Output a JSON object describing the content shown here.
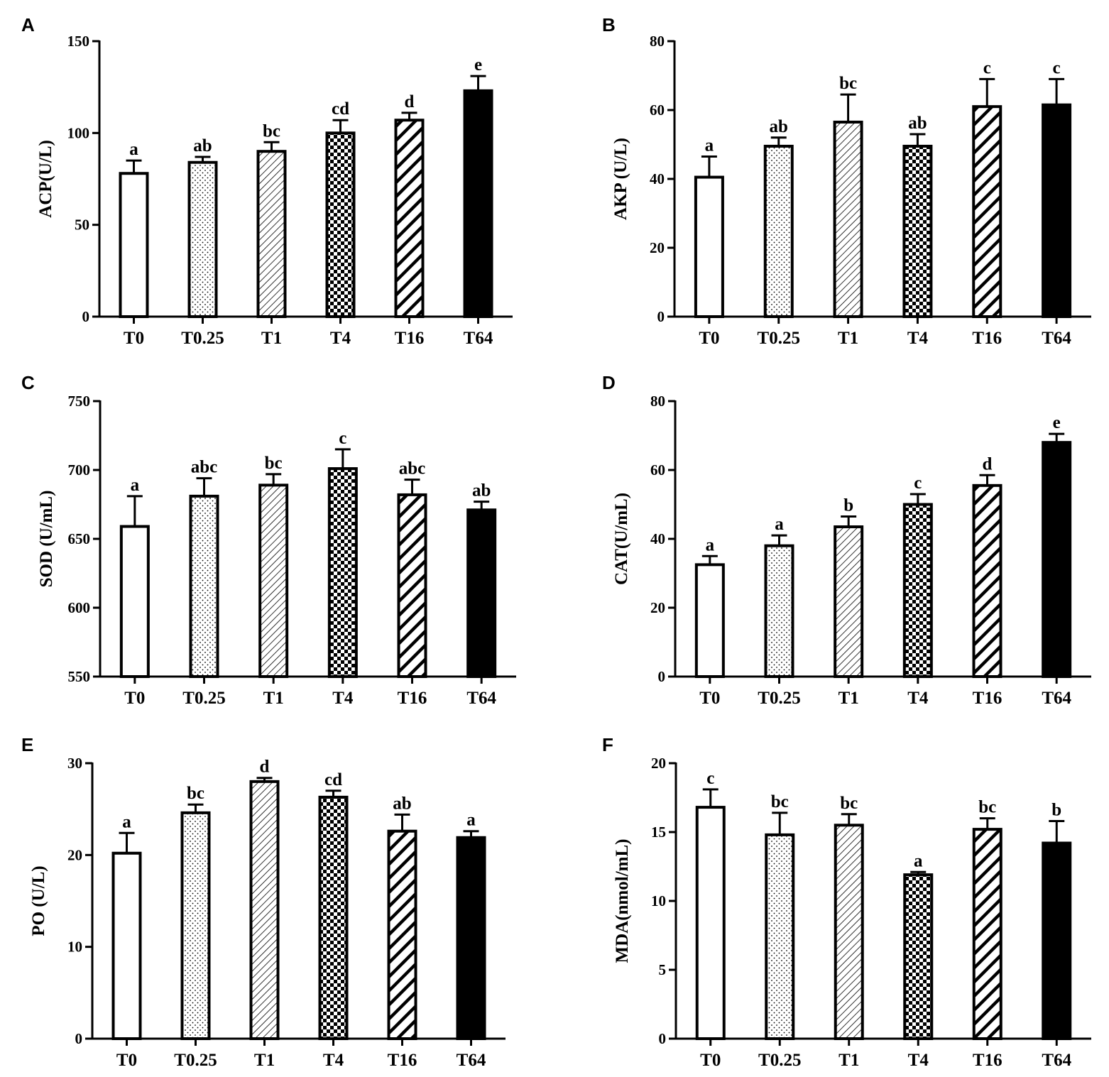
{
  "figure": {
    "background": "#ffffff",
    "ink": "#000000"
  },
  "chart_data": [
    {
      "panel": "A",
      "type": "bar",
      "ylabel": "ACP(U/L)",
      "xlabel": "",
      "title": "",
      "ylim": [
        0,
        150
      ],
      "yticks": [
        0,
        50,
        100,
        150
      ],
      "categories": [
        "T0",
        "T0.25",
        "T1",
        "T4",
        "T16",
        "T64"
      ],
      "values": [
        78,
        84,
        90,
        100,
        107,
        123
      ],
      "errors": [
        7,
        3,
        5,
        7,
        4,
        8
      ],
      "significance": [
        "a",
        "ab",
        "bc",
        "cd",
        "d",
        "e"
      ],
      "patterns": [
        "white",
        "dots",
        "fine-diagonal",
        "checker",
        "bold-diagonal",
        "solid"
      ]
    },
    {
      "panel": "B",
      "type": "bar",
      "ylabel": "AKP (U/L)",
      "xlabel": "",
      "title": "",
      "ylim": [
        0,
        80
      ],
      "yticks": [
        0,
        20,
        40,
        60,
        80
      ],
      "categories": [
        "T0",
        "T0.25",
        "T1",
        "T4",
        "T16",
        "T64"
      ],
      "values": [
        40.5,
        49.5,
        56.5,
        49.5,
        61,
        61.5
      ],
      "errors": [
        6,
        2.5,
        8,
        3.5,
        8,
        7.5
      ],
      "significance": [
        "a",
        "ab",
        "bc",
        "ab",
        "c",
        "c"
      ],
      "patterns": [
        "white",
        "dots",
        "fine-diagonal",
        "checker",
        "bold-diagonal",
        "solid"
      ]
    },
    {
      "panel": "C",
      "type": "bar",
      "ylabel": "SOD (U/mL)",
      "xlabel": "",
      "title": "",
      "ylim": [
        550,
        750
      ],
      "yticks": [
        550,
        600,
        650,
        700,
        750
      ],
      "categories": [
        "T0",
        "T0.25",
        "T1",
        "T4",
        "T16",
        "T64"
      ],
      "values": [
        659,
        681,
        689,
        701,
        682,
        671
      ],
      "errors": [
        22,
        13,
        8,
        14,
        11,
        6
      ],
      "significance": [
        "a",
        "abc",
        "bc",
        "c",
        "abc",
        "ab"
      ],
      "patterns": [
        "white",
        "dots",
        "fine-diagonal",
        "checker",
        "bold-diagonal",
        "solid"
      ]
    },
    {
      "panel": "D",
      "type": "bar",
      "ylabel": "CAT(U/mL)",
      "xlabel": "",
      "title": "",
      "ylim": [
        0,
        80
      ],
      "yticks": [
        0,
        20,
        40,
        60,
        80
      ],
      "categories": [
        "T0",
        "T0.25",
        "T1",
        "T4",
        "T16",
        "T64"
      ],
      "values": [
        32.5,
        38,
        43.5,
        50,
        55.5,
        68
      ],
      "errors": [
        2.5,
        3,
        3,
        3,
        3,
        2.5
      ],
      "significance": [
        "a",
        "a",
        "b",
        "c",
        "d",
        "e"
      ],
      "patterns": [
        "white",
        "dots",
        "fine-diagonal",
        "checker",
        "bold-diagonal",
        "solid"
      ]
    },
    {
      "panel": "E",
      "type": "bar",
      "ylabel": "PO (U/L)",
      "xlabel": "",
      "title": "",
      "ylim": [
        0,
        30
      ],
      "yticks": [
        0,
        10,
        20,
        30
      ],
      "categories": [
        "T0",
        "T0.25",
        "T1",
        "T4",
        "T16",
        "T64"
      ],
      "values": [
        20.2,
        24.6,
        28,
        26.3,
        22.6,
        21.9
      ],
      "errors": [
        2.2,
        0.9,
        0.4,
        0.7,
        1.8,
        0.7
      ],
      "significance": [
        "a",
        "bc",
        "d",
        "cd",
        "ab",
        "a"
      ],
      "patterns": [
        "white",
        "dots",
        "fine-diagonal",
        "checker",
        "bold-diagonal",
        "solid"
      ]
    },
    {
      "panel": "F",
      "type": "bar",
      "ylabel": "MDA(nmol/mL)",
      "xlabel": "",
      "title": "",
      "ylim": [
        0,
        20
      ],
      "yticks": [
        0,
        5,
        10,
        15,
        20
      ],
      "categories": [
        "T0",
        "T0.25",
        "T1",
        "T4",
        "T16",
        "T64"
      ],
      "values": [
        16.8,
        14.8,
        15.5,
        11.9,
        15.2,
        14.2
      ],
      "errors": [
        1.3,
        1.6,
        0.8,
        0.2,
        0.8,
        1.6
      ],
      "significance": [
        "c",
        "bc",
        "bc",
        "a",
        "bc",
        "b"
      ],
      "patterns": [
        "white",
        "dots",
        "fine-diagonal",
        "checker",
        "bold-diagonal",
        "solid"
      ]
    }
  ]
}
